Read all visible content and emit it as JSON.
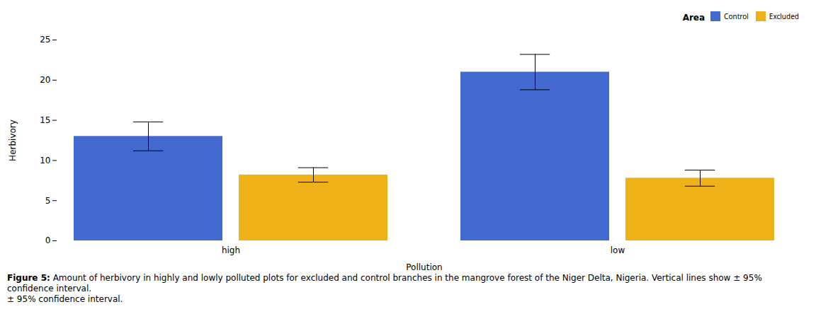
{
  "chart_data": {
    "type": "bar",
    "xlabel": "Pollution",
    "ylabel": "Herbivory",
    "legend_title": "Area",
    "categories": [
      "high",
      "low"
    ],
    "series": [
      {
        "name": "Control",
        "values": [
          13.0,
          21.0
        ],
        "errors": [
          1.8,
          2.2
        ]
      },
      {
        "name": "Excluded",
        "values": [
          8.2,
          7.8
        ],
        "errors": [
          0.9,
          1.0
        ]
      }
    ],
    "ylim": [
      0,
      25
    ],
    "yticks": [
      0,
      5,
      10,
      15,
      20,
      25
    ],
    "grid": false,
    "legend": "upper right",
    "annotations": [
      "Figure 5:",
      " Amount of herbivory in highly and lowly polluted plots for excluded and control branches in the mangrove forest of the Niger Delta, Nigeria. Vertical lines show ± 95% confidence interval.",
      "± 95% confidence interval."
    ]
  }
}
